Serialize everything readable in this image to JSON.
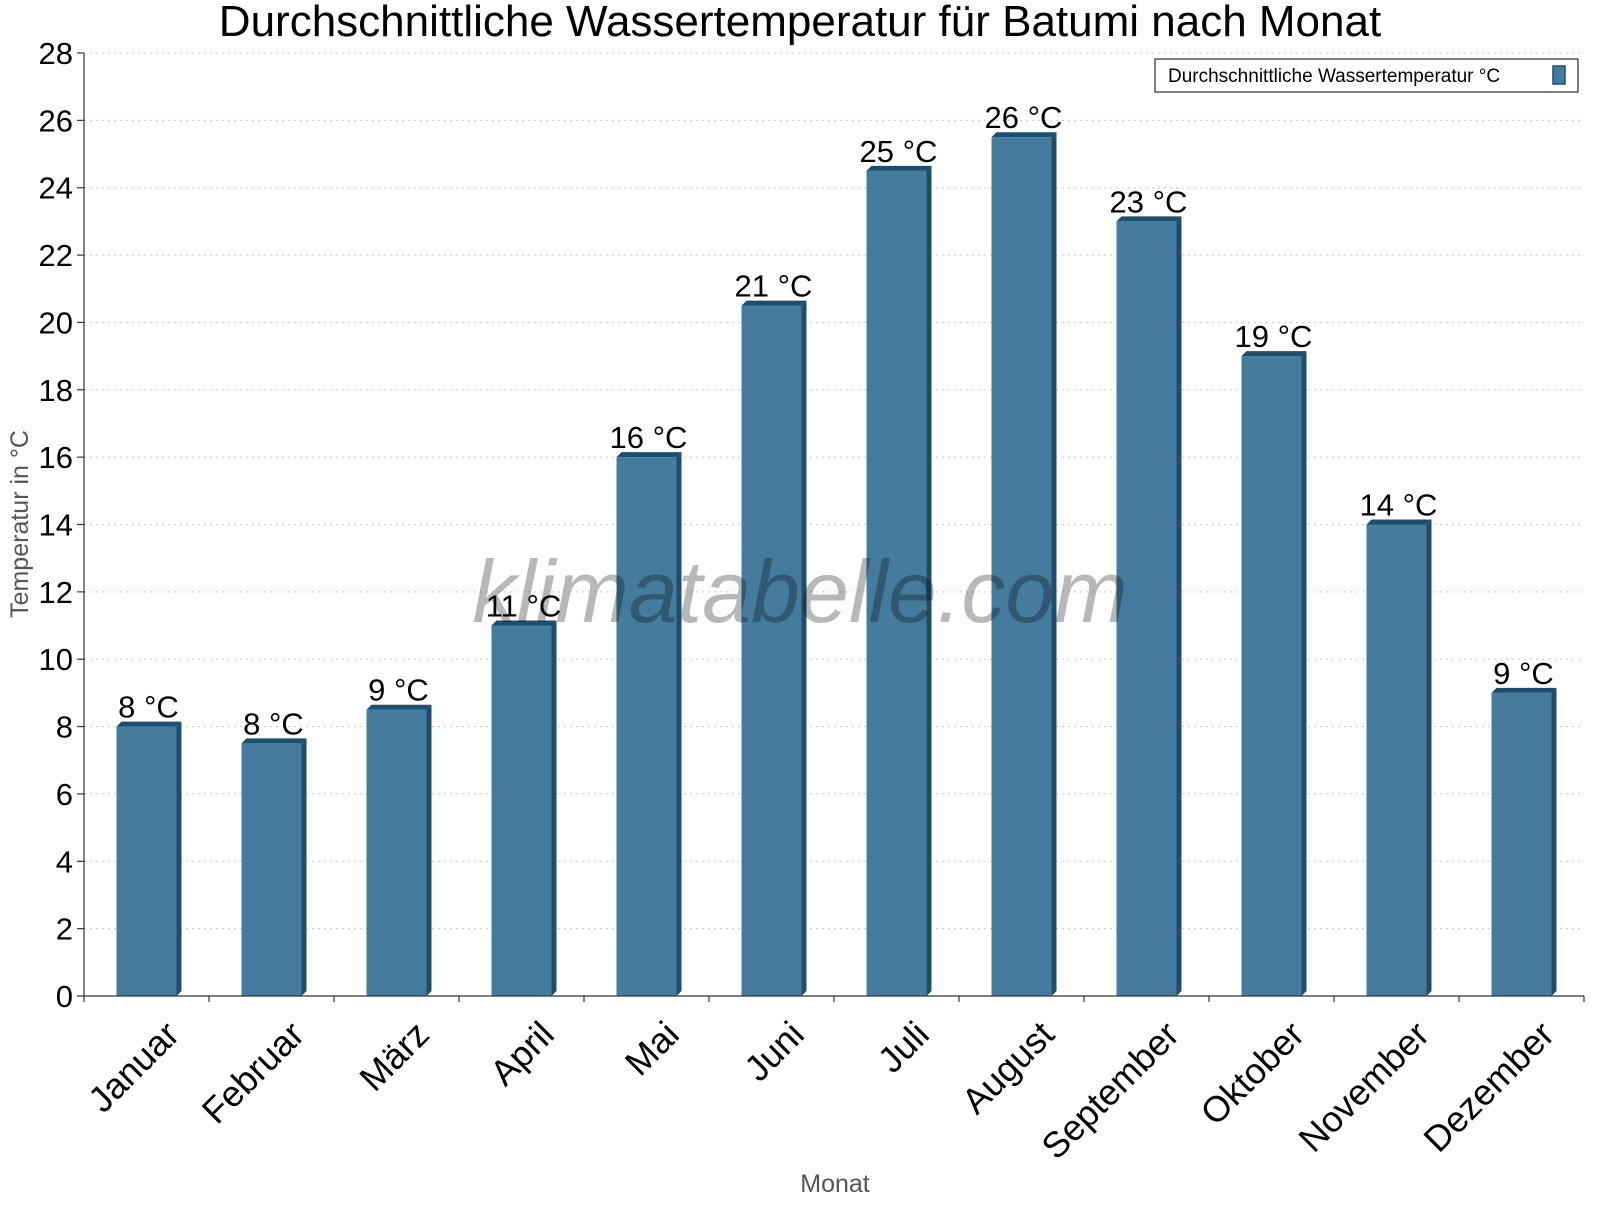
{
  "chart_data": {
    "type": "bar",
    "title": "Durchschnittliche Wassertemperatur für Batumi nach Monat",
    "xlabel": "Monat",
    "ylabel": "Temperatur in °C",
    "categories": [
      "Januar",
      "Februar",
      "März",
      "April",
      "Mai",
      "Juni",
      "Juli",
      "August",
      "September",
      "Oktober",
      "November",
      "Dezember"
    ],
    "series": [
      {
        "name": "Durchschnittliche Wassertemperatur °C",
        "values": [
          8,
          7.5,
          8.5,
          11,
          16,
          20.5,
          24.5,
          25.5,
          23,
          19,
          14,
          9
        ],
        "labels": [
          "8 °C",
          "8 °C",
          "9 °C",
          "11 °C",
          "16 °C",
          "21 °C",
          "25 °C",
          "26 °C",
          "23 °C",
          "19 °C",
          "14 °C",
          "9 °C"
        ],
        "color": "#457b9d",
        "edge_color": "#1d4e6e"
      }
    ],
    "ylim": [
      0,
      28
    ],
    "yticks": [
      0,
      2,
      4,
      6,
      8,
      10,
      12,
      14,
      16,
      18,
      20,
      22,
      24,
      26,
      28
    ],
    "grid": true,
    "legend_position": "top-right",
    "watermark": "klimatabelle.com"
  }
}
